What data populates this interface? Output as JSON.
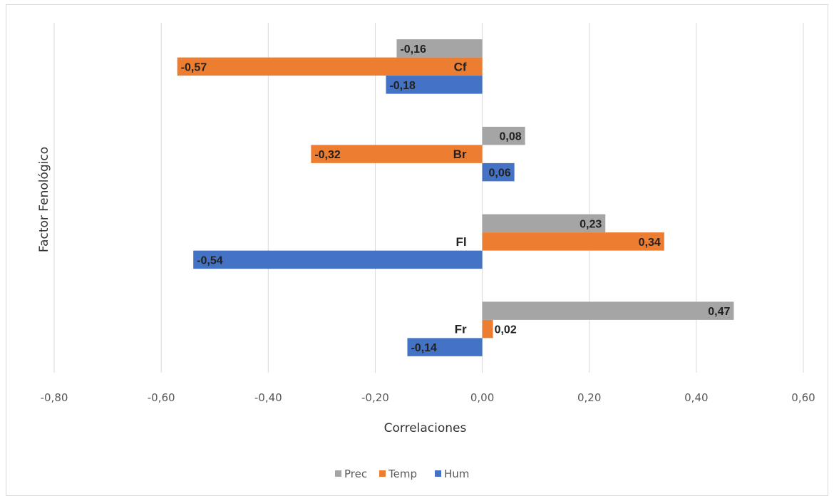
{
  "chart_data": {
    "type": "bar",
    "orientation": "horizontal",
    "title": "",
    "xlabel": "Correlaciones",
    "ylabel": "Factor Fenológico",
    "xlim": [
      -0.8,
      0.6
    ],
    "xticks": [
      -0.8,
      -0.6,
      -0.4,
      -0.2,
      0.0,
      0.2,
      0.4,
      0.6
    ],
    "xtick_labels": [
      "-0,80",
      "-0,60",
      "-0,40",
      "-0,20",
      "0,00",
      "0,20",
      "0,40",
      "0,60"
    ],
    "grid": "vertical",
    "legend_position": "bottom",
    "categories": [
      "Cf",
      "Br",
      "Fl",
      "Fr"
    ],
    "series": [
      {
        "name": "Prec",
        "color": "#a5a5a5",
        "values": [
          -0.16,
          0.08,
          0.23,
          0.47
        ],
        "labels": [
          "-0,16",
          "0,08",
          "0,23",
          "0,47"
        ]
      },
      {
        "name": "Temp",
        "color": "#ed7d31",
        "values": [
          -0.57,
          -0.32,
          0.34,
          0.02
        ],
        "labels": [
          "-0,57",
          "-0,32",
          "0,34",
          "0,02"
        ]
      },
      {
        "name": "Hum",
        "color": "#4472c4",
        "values": [
          -0.18,
          0.06,
          -0.54,
          -0.14
        ],
        "labels": [
          "-0,18",
          "0,06",
          "-0,54",
          "-0,14"
        ]
      }
    ]
  }
}
